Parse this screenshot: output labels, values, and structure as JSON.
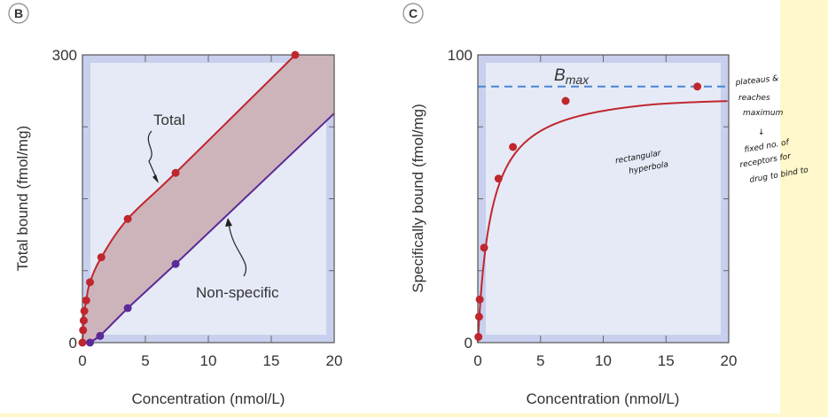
{
  "chart_data": [
    {
      "panel": "B",
      "type": "line",
      "xlabel": "Concentration (nmol/L)",
      "ylabel": "Total bound (fmol/mg)",
      "xlim": [
        0,
        20
      ],
      "ylim": [
        0,
        300
      ],
      "xticks": [
        "0",
        "5",
        "10",
        "15",
        "20"
      ],
      "yticks": [
        "0",
        "300"
      ],
      "series": [
        {
          "name": "Total",
          "color": "#c0262d",
          "x": [
            0,
            0.05,
            0.1,
            0.15,
            0.3,
            0.6,
            1.5,
            3.6,
            7.4,
            16.9
          ],
          "y": [
            0,
            13,
            23,
            33,
            44,
            63,
            89,
            129,
            177,
            300
          ]
        },
        {
          "name": "Non-specific",
          "color": "#5b2a96",
          "x": [
            0.6,
            1.4,
            3.6,
            7.4
          ],
          "y": [
            0,
            7,
            36,
            82
          ],
          "line_end": [
            20,
            239
          ]
        }
      ],
      "shaded_between_series": true
    },
    {
      "panel": "C",
      "type": "line",
      "xlabel": "Concentration (nmol/L)",
      "ylabel": "Specifically bound (fmol/mg)",
      "xlim": [
        0,
        20
      ],
      "ylim": [
        0,
        100
      ],
      "xticks": [
        "0",
        "5",
        "10",
        "15",
        "20"
      ],
      "yticks": [
        "0",
        "100"
      ],
      "series": [
        {
          "color": "#c0262d",
          "x": [
            0.05,
            0.1,
            0.15,
            0.5,
            1.65,
            2.8,
            7.0,
            17.5
          ],
          "y": [
            2,
            9,
            15,
            33,
            57,
            68,
            84,
            89
          ]
        }
      ],
      "reference_line": {
        "label": "B",
        "label_sub": "max",
        "y": 89,
        "style": "dashed",
        "color": "#4a86d0"
      },
      "annotations": {
        "curve": [
          "rectangular",
          "hyperbola"
        ],
        "margin": [
          "plateaus &",
          "reaches",
          "maximum",
          "↓",
          "fixed no. of",
          "receptors for",
          "drug to bind to"
        ]
      }
    }
  ],
  "colors": {
    "plot_bg": "#e6eaf7",
    "plot_border_band": "#c8d0ee",
    "fill_band": "#cdb4bb",
    "note_bg": "#fff8cc"
  }
}
